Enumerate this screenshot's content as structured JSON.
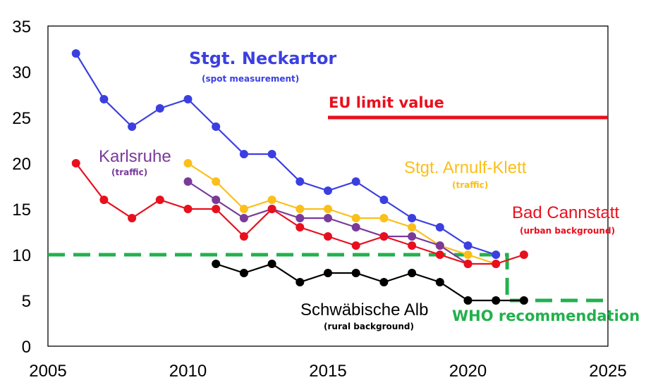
{
  "chart_data": {
    "type": "line",
    "title": "",
    "xlabel": "",
    "ylabel": "",
    "xlim": [
      2005,
      2025
    ],
    "ylim": [
      0,
      35
    ],
    "x_ticks": [
      2005,
      2010,
      2015,
      2020,
      2025
    ],
    "y_ticks": [
      0,
      5,
      10,
      15,
      20,
      25,
      30,
      35
    ],
    "grid": false,
    "series": [
      {
        "id": "neckartor",
        "name": "Stgt. Neckartor",
        "subtitle": "(spot measurement)",
        "color": "#3b3fe0",
        "x": [
          2006,
          2007,
          2008,
          2009,
          2010,
          2011,
          2012,
          2013,
          2014,
          2015,
          2016,
          2017,
          2018,
          2019,
          2020,
          2021
        ],
        "values": [
          32,
          27,
          24,
          26,
          27,
          24,
          21,
          21,
          18,
          17,
          18,
          16,
          14,
          13,
          11,
          10
        ]
      },
      {
        "id": "arnulf",
        "name": "Stgt. Arnulf-Klett",
        "subtitle": "(traffic)",
        "color": "#fbbf1a",
        "x": [
          2010,
          2011,
          2012,
          2013,
          2014,
          2015,
          2016,
          2017,
          2018,
          2019,
          2020,
          2021
        ],
        "values": [
          20,
          18,
          15,
          16,
          15,
          15,
          14,
          14,
          13,
          11,
          10,
          9
        ]
      },
      {
        "id": "karlsruhe",
        "name": "Karlsruhe",
        "subtitle": "(traffic)",
        "color": "#7a3a9a",
        "x": [
          2010,
          2011,
          2012,
          2013,
          2014,
          2015,
          2016,
          2017,
          2018,
          2019,
          2020
        ],
        "values": [
          18,
          16,
          14,
          15,
          14,
          14,
          13,
          12,
          12,
          11,
          9
        ]
      },
      {
        "id": "cannstatt",
        "name": "Bad Cannstatt",
        "subtitle": "(urban background)",
        "color": "#e8101e",
        "x": [
          2006,
          2007,
          2008,
          2009,
          2010,
          2011,
          2012,
          2013,
          2014,
          2015,
          2016,
          2017,
          2018,
          2019,
          2020,
          2021,
          2022
        ],
        "values": [
          20,
          16,
          14,
          16,
          15,
          15,
          12,
          15,
          13,
          12,
          11,
          12,
          11,
          10,
          9,
          9,
          10
        ]
      },
      {
        "id": "alb",
        "name": "Schwäbische Alb",
        "subtitle": "(rural background)",
        "color": "#000000",
        "x": [
          2011,
          2012,
          2013,
          2014,
          2015,
          2016,
          2017,
          2018,
          2019,
          2020,
          2021,
          2022
        ],
        "values": [
          9,
          8,
          9,
          7,
          8,
          8,
          7,
          8,
          7,
          5,
          5,
          5
        ]
      }
    ],
    "reference_lines": [
      {
        "id": "eu",
        "name": "EU limit value",
        "color": "#e8101e",
        "style": "solid",
        "x": [
          2015,
          2025
        ],
        "values": [
          25,
          25
        ]
      },
      {
        "id": "who",
        "name": "WHO recommendation",
        "color": "#22b14c",
        "style": "dashed",
        "x": [
          2005,
          2021.4,
          2021.4,
          2025
        ],
        "values": [
          10,
          10,
          5,
          5
        ]
      }
    ]
  }
}
